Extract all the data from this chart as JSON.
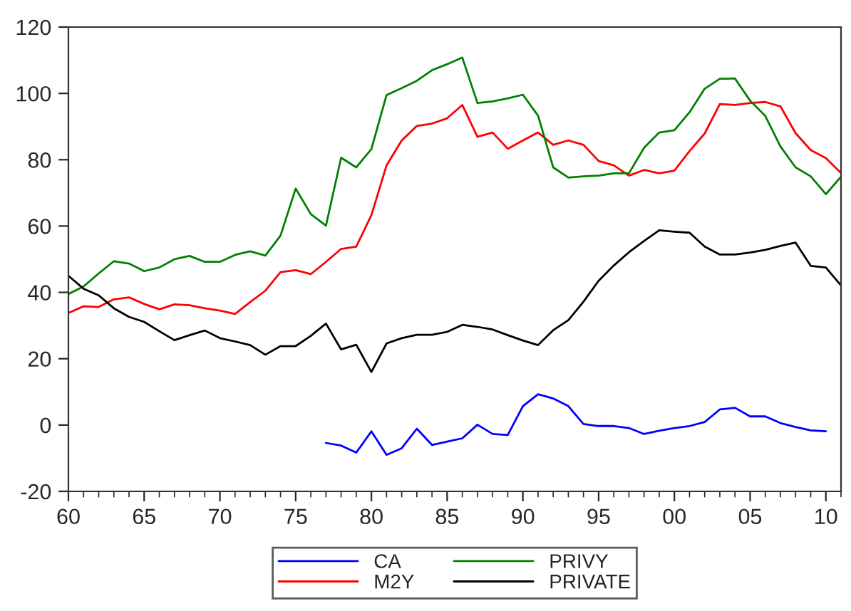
{
  "chart_data": {
    "type": "line",
    "x": [
      1960,
      1961,
      1962,
      1963,
      1964,
      1965,
      1966,
      1967,
      1968,
      1969,
      1970,
      1971,
      1972,
      1973,
      1974,
      1975,
      1976,
      1977,
      1978,
      1979,
      1980,
      1981,
      1982,
      1983,
      1984,
      1985,
      1986,
      1987,
      1988,
      1989,
      1990,
      1991,
      1992,
      1993,
      1994,
      1995,
      1996,
      1997,
      1998,
      1999,
      2000,
      2001,
      2002,
      2003,
      2004,
      2005,
      2006,
      2007,
      2008,
      2009,
      2010,
      2011
    ],
    "series": [
      {
        "name": "CA",
        "color": "#0000ff",
        "x": [
          1977,
          1978,
          1979,
          1980,
          1981,
          1982,
          1983,
          1984,
          1985,
          1986,
          1987,
          1988,
          1989,
          1990,
          1991,
          1992,
          1993,
          1994,
          1995,
          1996,
          1997,
          1998,
          1999,
          2000,
          2001,
          2002,
          2003,
          2004,
          2005,
          2006,
          2007,
          2008,
          2009,
          2010
        ],
        "values": [
          -5.4,
          -6.2,
          -8.3,
          -1.9,
          -9,
          -7,
          -1.1,
          -6,
          -5,
          -4,
          0.1,
          -2.7,
          -3,
          5.7,
          9.3,
          8,
          5.7,
          0.3,
          -0.3,
          -0.3,
          -0.9,
          -2.7,
          -1.7,
          -0.9,
          -0.3,
          0.9,
          4.7,
          5.2,
          2.6,
          2.6,
          0.6,
          -0.6,
          -1.6,
          -1.9
        ]
      },
      {
        "name": "M2Y",
        "color": "#ff0000",
        "values": [
          33.8,
          35.8,
          35.6,
          37.9,
          38.5,
          36.5,
          34.9,
          36.4,
          36.1,
          35.2,
          34.5,
          33.5,
          37.1,
          40.5,
          46.1,
          46.7,
          45.5,
          49.2,
          53.1,
          53.8,
          63.3,
          78.3,
          85.8,
          90.2,
          90.9,
          92.5,
          96.5,
          86.9,
          88.2,
          83.3,
          85.8,
          88.2,
          84.5,
          85.8,
          84.5,
          79.6,
          78.3,
          75.2,
          76.9,
          75.9,
          76.7,
          82.6,
          87.9,
          96.8,
          96.5,
          97.1,
          97.4,
          96.1,
          88,
          82.9,
          80.5,
          76
        ]
      },
      {
        "name": "PRIVY",
        "color": "#008000",
        "values": [
          39.5,
          41.8,
          45.7,
          49.4,
          48.7,
          46.4,
          47.5,
          50,
          51,
          49.2,
          49.2,
          51.3,
          52.4,
          51.1,
          57.1,
          71.3,
          63.6,
          60.1,
          80.6,
          77.7,
          83.2,
          99.5,
          101.6,
          103.8,
          107,
          108.8,
          110.8,
          97.1,
          97.6,
          98.5,
          99.6,
          93.3,
          77.7,
          74.6,
          75,
          75.2,
          75.9,
          75.9,
          83.6,
          88.2,
          88.9,
          94.3,
          101.4,
          104.4,
          104.5,
          97.8,
          93.2,
          84,
          77.7,
          75,
          69.6,
          74.9
        ]
      },
      {
        "name": "PRIVATE",
        "color": "#000000",
        "values": [
          45,
          41.1,
          39.1,
          35.2,
          32.6,
          31.1,
          28.3,
          25.6,
          27.1,
          28.5,
          26.2,
          25.2,
          24.1,
          21.2,
          23.8,
          23.8,
          26.9,
          30.6,
          22.8,
          24.2,
          16,
          24.6,
          26.2,
          27.2,
          27.2,
          28.1,
          30.2,
          29.6,
          28.8,
          27.1,
          25.5,
          24.1,
          28.6,
          31.6,
          37.2,
          43.5,
          48.1,
          52.1,
          55.5,
          58.7,
          58.3,
          58,
          53.8,
          51.4,
          51.4,
          52,
          52.8,
          54,
          55,
          48,
          47.5,
          42.1
        ]
      }
    ],
    "xlim": [
      1960,
      2011
    ],
    "xticks": [
      {
        "value": 1960,
        "label": "60"
      },
      {
        "value": 1965,
        "label": "65"
      },
      {
        "value": 1970,
        "label": "70"
      },
      {
        "value": 1975,
        "label": "75"
      },
      {
        "value": 1980,
        "label": "80"
      },
      {
        "value": 1985,
        "label": "85"
      },
      {
        "value": 1990,
        "label": "90"
      },
      {
        "value": 1995,
        "label": "95"
      },
      {
        "value": 2000,
        "label": "00"
      },
      {
        "value": 2005,
        "label": "05"
      },
      {
        "value": 2010,
        "label": "10"
      }
    ],
    "ylim": [
      -20,
      120
    ],
    "yticks": [
      -20,
      0,
      20,
      40,
      60,
      80,
      100,
      120
    ],
    "grid": false,
    "legend": "bottom",
    "line_style": "solid",
    "marker": "none"
  }
}
